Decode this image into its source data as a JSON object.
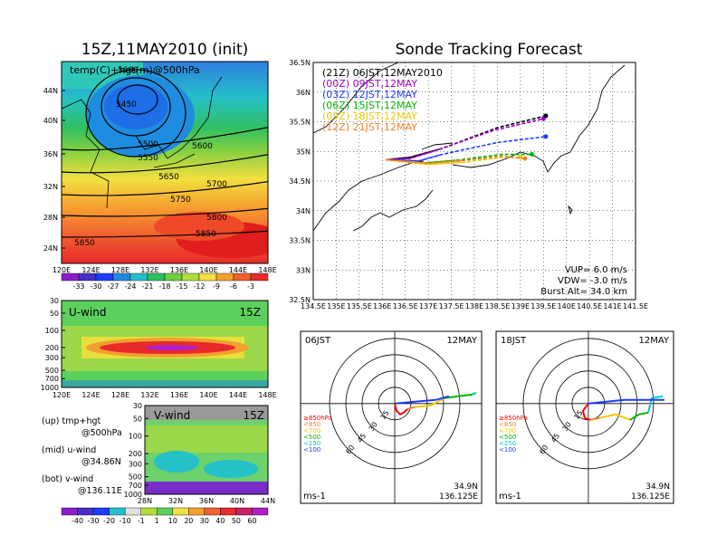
{
  "left_top": {
    "title": "15Z,11MAY2010 (init)",
    "subtitle": "temp(C)+hgt(m)@500hPa",
    "lat_ticks": [
      "44N",
      "40N",
      "36N",
      "32N",
      "28N",
      "24N"
    ],
    "lon_ticks": [
      "120E",
      "124E",
      "128E",
      "132E",
      "136E",
      "140E",
      "144E",
      "148E"
    ],
    "contour_labels": [
      "5600",
      "5450",
      "5500",
      "5550",
      "5600",
      "5650",
      "5700",
      "5750",
      "5800",
      "5850",
      "5850"
    ],
    "colorbar_labels": [
      "-33",
      "-30",
      "-27",
      "-24",
      "-21",
      "-18",
      "-15",
      "-12",
      "-9",
      "-6",
      "-3"
    ]
  },
  "left_mid": {
    "title": "U-wind",
    "time": "15Z",
    "p_ticks": [
      "30",
      "50",
      "100",
      "200",
      "300",
      "500",
      "700",
      "1000"
    ],
    "lon_ticks": [
      "120E",
      "124E",
      "128E",
      "132E",
      "136E",
      "140E",
      "144E",
      "148E"
    ]
  },
  "left_bot": {
    "title": "V-wind",
    "time": "15Z",
    "p_ticks": [
      "30",
      "50",
      "100",
      "200",
      "300",
      "500",
      "700",
      "1000"
    ],
    "lat_ticks": [
      "28N",
      "32N",
      "36N",
      "40N",
      "44N"
    ],
    "colorbar_labels": [
      "-40",
      "-30",
      "-20",
      "-10",
      "-1",
      "1",
      "10",
      "20",
      "30",
      "40",
      "50",
      "60"
    ]
  },
  "notes": [
    {
      "a": "(up) tmp+hgt",
      "b": "@500hPa"
    },
    {
      "a": "(mid) u-wind",
      "b": "@34.86N"
    },
    {
      "a": "(bot) v-wind",
      "b": "@136.11E"
    }
  ],
  "right_top": {
    "title": "Sonde Tracking Forecast",
    "lat_ticks": [
      "36.5N",
      "36N",
      "35.5N",
      "35N",
      "34.5N",
      "34N",
      "33.5N",
      "33N",
      "32.5N"
    ],
    "lon_ticks": [
      "134.5E",
      "135E",
      "135.5E",
      "136E",
      "136.5E",
      "137E",
      "137.5E",
      "138E",
      "138.5E",
      "139E",
      "139.5E",
      "140E",
      "140.5E",
      "141E",
      "141.5E"
    ],
    "legend": [
      {
        "text": "(21Z)  06JST,12MAY2010",
        "color": "#000000"
      },
      {
        "text": "(00Z)  09JST,12MAY",
        "color": "#a000c8"
      },
      {
        "text": "(03Z)  12JST,12MAY",
        "color": "#1e3cff"
      },
      {
        "text": "(06Z)  15JST,12MAY",
        "color": "#00b400"
      },
      {
        "text": "(09Z)  18JST,12MAY",
        "color": "#f0c800"
      },
      {
        "text": "(12Z)  21JST,12MAY",
        "color": "#f08228"
      }
    ],
    "params": [
      "VUP=  6.0  m/s",
      "VDW= -3.0  m/s",
      "Burst Alt=  34.0  km"
    ]
  },
  "hodo1": {
    "time": "06JST",
    "date": "12MAY",
    "unit": "ms-1",
    "lat": "34.9N",
    "lon": "136.125E",
    "rings": [
      "15",
      "30",
      "45",
      "60"
    ],
    "levels": [
      {
        "t": "≥850hPa",
        "c": "#ff0000"
      },
      {
        "t": "<850",
        "c": "#f08228"
      },
      {
        "t": "<700",
        "c": "#f0c800"
      },
      {
        "t": "<500",
        "c": "#00b400"
      },
      {
        "t": "<250",
        "c": "#00c8c8"
      },
      {
        "t": "<100",
        "c": "#1e3cff"
      }
    ]
  },
  "hodo2": {
    "time": "18JST",
    "date": "12MAY",
    "unit": "ms-1",
    "lat": "34.9N",
    "lon": "136.125E",
    "rings": [
      "15",
      "30",
      "45",
      "60"
    ],
    "levels": [
      {
        "t": "≥850hPa",
        "c": "#ff0000"
      },
      {
        "t": "<850",
        "c": "#f08228"
      },
      {
        "t": "<700",
        "c": "#f0c800"
      },
      {
        "t": "<500",
        "c": "#00b400"
      },
      {
        "t": "<250",
        "c": "#00c8c8"
      },
      {
        "t": "<100",
        "c": "#1e3cff"
      }
    ]
  },
  "chart_data": [
    {
      "type": "heatmap",
      "title": "15Z,11MAY2010 (init)",
      "subtitle": "temp(C)+hgt(m)@500hPa",
      "x_range": [
        120,
        148
      ],
      "y_range": [
        22,
        48
      ],
      "colorbar": [
        -33,
        -30,
        -27,
        -24,
        -21,
        -18,
        -15,
        -12,
        -9,
        -6,
        -3
      ],
      "contours": [
        5450,
        5500,
        5550,
        5600,
        5650,
        5700,
        5750,
        5800,
        5850
      ]
    },
    {
      "type": "heatmap",
      "title": "U-wind",
      "x_range": [
        120,
        148
      ],
      "y": "pressure"
    },
    {
      "type": "heatmap",
      "title": "V-wind",
      "x_range": [
        28,
        44
      ],
      "y": "pressure",
      "colorbar": [
        -40,
        -30,
        -20,
        -10,
        -1,
        1,
        10,
        20,
        30,
        40,
        50,
        60
      ]
    },
    {
      "type": "line",
      "title": "Sonde Tracking Forecast",
      "x_range": [
        134.5,
        141.5
      ],
      "y_range": [
        32.5,
        36.5
      ],
      "series": [
        {
          "name": "(21Z)  06JST,12MAY2010",
          "x": [
            136.08,
            136.6,
            137.3,
            138.5,
            139.55
          ],
          "y": [
            34.86,
            34.9,
            35.05,
            35.4,
            35.6
          ]
        },
        {
          "name": "(00Z)  09JST,12MAY",
          "x": [
            136.08,
            136.6,
            137.1,
            138.4,
            139.5
          ],
          "y": [
            34.86,
            34.88,
            35.0,
            35.35,
            35.55
          ]
        },
        {
          "name": "(03Z)  12JST,12MAY",
          "x": [
            136.08,
            136.8,
            137.3,
            138.5,
            139.55
          ],
          "y": [
            34.86,
            34.84,
            34.95,
            35.15,
            35.25
          ]
        },
        {
          "name": "(06Z)  15JST,12MAY",
          "x": [
            136.08,
            136.8,
            137.6,
            138.6,
            139.25
          ],
          "y": [
            34.86,
            34.8,
            34.85,
            34.95,
            34.95
          ]
        },
        {
          "name": "(09Z)  18JST,12MAY",
          "x": [
            136.08,
            137.0,
            137.8,
            138.6,
            139.0
          ],
          "y": [
            34.86,
            34.78,
            34.82,
            34.9,
            34.9
          ]
        },
        {
          "name": "(12Z)  21JST,12MAY",
          "x": [
            136.08,
            137.0,
            137.8,
            138.6,
            139.1
          ],
          "y": [
            34.86,
            34.8,
            34.85,
            34.92,
            34.88
          ]
        }
      ]
    }
  ]
}
